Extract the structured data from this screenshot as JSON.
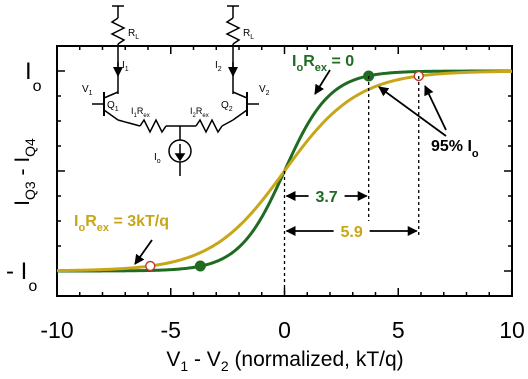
{
  "chart_data": {
    "type": "line",
    "x_axis": {
      "label_main": "V",
      "label_sub1": "1",
      "label_mid": " - V",
      "label_sub2": "2",
      "label_tail": " (normalized, kT/q)",
      "range": [
        -10,
        10
      ],
      "ticks": [
        -10,
        -5,
        0,
        5,
        10
      ],
      "tick_labels": [
        "-10",
        "-5",
        "0",
        "5",
        "10"
      ]
    },
    "y_axis": {
      "label_parts": [
        "I",
        "Q3",
        " - I",
        "Q4"
      ],
      "range": [
        -1,
        1
      ],
      "top_label_main": "I",
      "top_label_sub": "o",
      "bottom_label_main": "- I",
      "bottom_label_sub": "o"
    },
    "series": [
      {
        "key": "green",
        "color": "#1e6b21",
        "k": 0.5,
        "annotation_parts": [
          "I",
          "o",
          "R",
          "ex",
          " = 0"
        ],
        "markers": [
          {
            "x": 3.7,
            "y": 0.95,
            "style": "filled"
          },
          {
            "x": -3.7,
            "y": -0.95,
            "style": "filled"
          }
        ]
      },
      {
        "key": "gold",
        "color": "#c9a519",
        "k": 0.31,
        "annotation_parts": [
          "I",
          "o",
          "R",
          "ex",
          " = 3kT/q"
        ],
        "markers": [
          {
            "x": 5.9,
            "y": 0.95,
            "style": "open"
          },
          {
            "x": -5.9,
            "y": -0.95,
            "style": "open"
          }
        ]
      }
    ],
    "annotations": {
      "percent_label_main": "95% I",
      "percent_label_sub": "o",
      "spans": [
        {
          "label": "3.7",
          "from": 0,
          "to": 3.7
        },
        {
          "label": "5.9",
          "from": 0,
          "to": 5.9
        }
      ]
    },
    "inset_circuit": {
      "labels": {
        "rl_left": "R",
        "rl_left_sub": "L",
        "rl_right": "R",
        "rl_right_sub": "L",
        "i1": "I",
        "i1_sub": "1",
        "i2": "I",
        "i2_sub": "2",
        "v1": "V",
        "v1_sub": "1",
        "v2": "V",
        "v2_sub": "2",
        "q1": "Q",
        "q1_sub": "1",
        "q2": "Q",
        "q2_sub": "2",
        "r1": "I",
        "r1_sub": "1",
        "r1_tail": "R",
        "r1_tail_sub": "ex",
        "r2": "I",
        "r2_sub": "2",
        "r2_tail": "R",
        "r2_tail_sub": "ex",
        "io": "I",
        "io_sub": "o"
      }
    }
  }
}
